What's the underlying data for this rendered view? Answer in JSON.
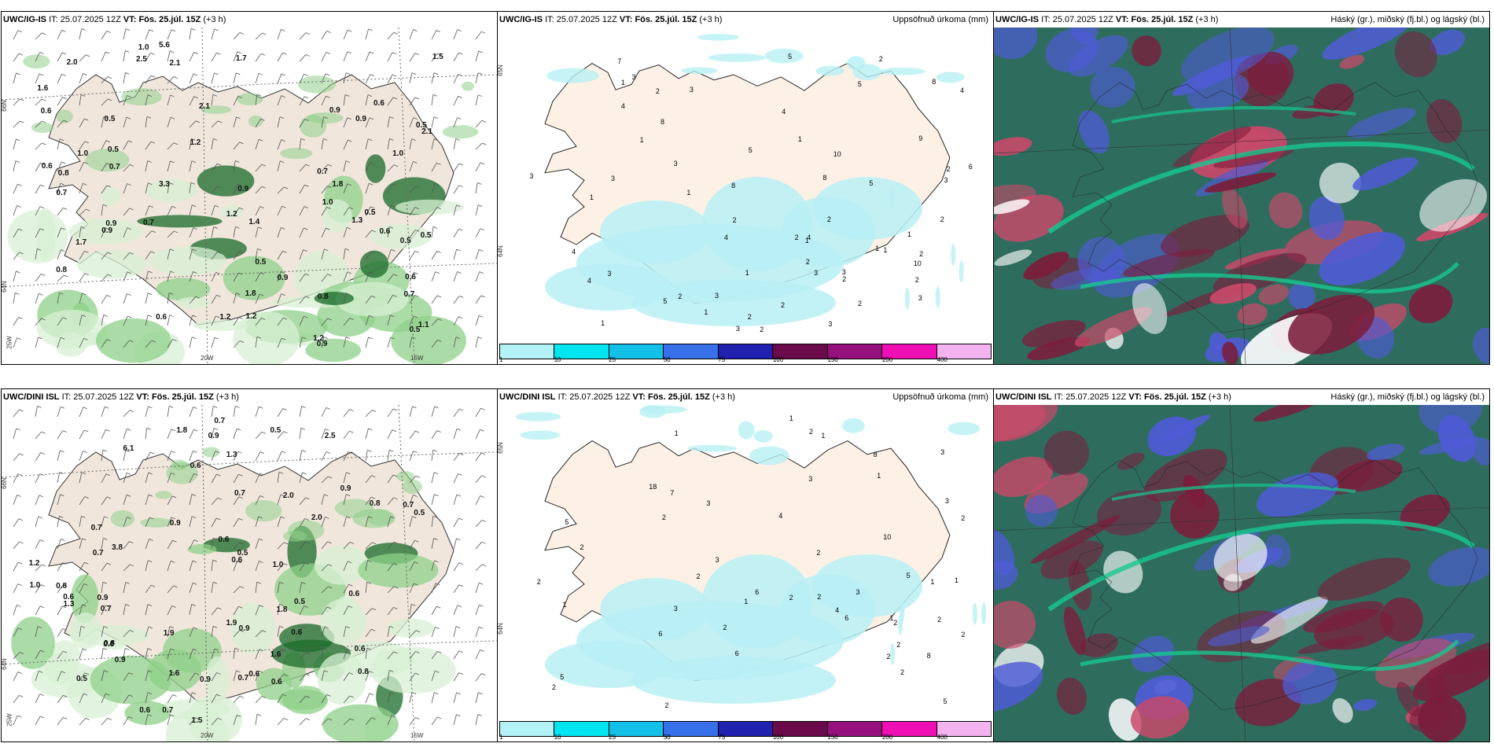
{
  "colors": {
    "land": "#f0e6dc",
    "land_light": "#fdf1e6",
    "precip_light": "#d8f0d4",
    "precip_mid": "#8fd08a",
    "precip_dark": "#1a6b2a",
    "cyan_precip": "#b8f0f4",
    "cloud_high": "#7a1e3c",
    "cloud_mid": "#2e6d5e",
    "cloud_low": "#4f5bd6",
    "cloud_green": "#17c88f"
  },
  "legend": {
    "colors": [
      "#b3f2f7",
      "#00e5f0",
      "#12c0e8",
      "#3870ea",
      "#2121b0",
      "#6a0a4a",
      "#96107e",
      "#ee10b4",
      "#f3b3f0"
    ],
    "ticks": [
      "1",
      "10",
      "25",
      "50",
      "75",
      "100",
      "150",
      "200",
      "400"
    ]
  },
  "panels": [
    {
      "model": "UWC/IG-IS",
      "it_label": "IT:",
      "it": "25.07.2025 12Z",
      "vt_label": "VT:",
      "vt": "Fös. 25.júl. 15Z",
      "lead": "(+3 h)",
      "title_right": "",
      "type": "wind_precip",
      "labels": [
        "0.6",
        "0.6",
        "0.6",
        "1.0",
        "2.1",
        "1.2",
        "2.1",
        "0.9",
        "1.4",
        "1.2",
        "1.7",
        "0.7",
        "1.8",
        "0.9",
        "1.8",
        "1.0",
        "1.7",
        "2.1",
        "0.5",
        "0.8",
        "1.2",
        "0.9",
        "0.5",
        "0.7",
        "0.5",
        "0.5",
        "0.7",
        "0.6",
        "0.5",
        "0.9",
        "0.7",
        "0.6",
        "0.5",
        "0.5",
        "1.0",
        "0.8",
        "0.9",
        "1.1",
        "1.3",
        "0.9",
        "0.8",
        "1.2",
        "2.0",
        "1.2",
        "2.5",
        "0.5",
        "1.0",
        "3.3",
        "5.6",
        "1.6",
        "0.6",
        "0.7",
        "1.5",
        "0.9"
      ],
      "lat_labels": [
        "66N",
        "64N"
      ],
      "lon_labels": [
        "25W",
        "20W",
        "15W"
      ],
      "numbers": []
    },
    {
      "model": "UWC/IG-IS",
      "it_label": "IT:",
      "it": "25.07.2025 12Z",
      "vt_label": "VT:",
      "vt": "Fös. 25.júl. 15Z",
      "lead": "(+3 h)",
      "title_right": "Uppsöfnuð úrkoma (mm)",
      "type": "accum",
      "labels": [],
      "lat_labels": [
        "65N",
        "64N"
      ],
      "lon_labels": [],
      "numbers": [
        "3",
        "3",
        "9",
        "3",
        "3",
        "4",
        "8",
        "2",
        "2",
        "1",
        "1",
        "1",
        "10",
        "5",
        "8",
        "10",
        "1",
        "2",
        "1",
        "3",
        "1",
        "2",
        "1",
        "1",
        "3",
        "1",
        "2",
        "2",
        "4",
        "3",
        "4",
        "5",
        "3",
        "5",
        "4",
        "3",
        "3",
        "2",
        "5",
        "6",
        "7",
        "2",
        "4",
        "8",
        "8",
        "4",
        "3",
        "4",
        "2",
        "2",
        "2",
        "2",
        "2",
        "1",
        "3",
        "3",
        "5",
        "1",
        "1",
        "2",
        "2",
        "2"
      ]
    },
    {
      "model": "UWC/IG-IS",
      "it_label": "IT:",
      "it": "25.07.2025 12Z",
      "vt_label": "VT:",
      "vt": "Fös. 25.júl. 15Z",
      "lead": "(+3 h)",
      "title_right": "Háský (gr.), miðský (fj.bl.) og lágský (bl.)",
      "type": "clouds",
      "labels": [],
      "lat_labels": [],
      "lon_labels": [],
      "numbers": []
    },
    {
      "model": "UWC/DINI ISL",
      "it_label": "IT:",
      "it": "25.07.2025 12Z",
      "vt_label": "VT:",
      "vt": "Fös. 25.júl. 15Z",
      "lead": "(+3 h)",
      "title_right": "",
      "type": "wind_precip",
      "labels": [
        "0.5",
        "2.5",
        "6.1",
        "0.9",
        "0.9",
        "3.8",
        "0.7",
        "0.8",
        "0.8",
        "2.0",
        "0.8",
        "0.7",
        "0.6",
        "0.6",
        "1.5",
        "1.8",
        "0.8",
        "1.2",
        "0.6",
        "0.7",
        "0.6",
        "0.9",
        "0.6",
        "0.5",
        "0.6",
        "1.6",
        "0.6",
        "0.5",
        "0.7",
        "0.5",
        "0.7",
        "0.9",
        "0.6",
        "1.9",
        "0.6",
        "1.3",
        "0.7",
        "1.0",
        "2.0",
        "0.6",
        "0.5",
        "1.3",
        "0.9",
        "0.9",
        "1.0",
        "0.7",
        "1.8",
        "0.7",
        "1.9",
        "1.6",
        "0.9",
        "0.6"
      ],
      "lat_labels": [
        "66N",
        "64N"
      ],
      "lon_labels": [
        "25W",
        "20W",
        "15W"
      ],
      "numbers": []
    },
    {
      "model": "UWC/DINI ISL",
      "it_label": "IT:",
      "it": "25.07.2025 12Z",
      "vt_label": "VT:",
      "vt": "Fös. 25.júl. 15Z",
      "lead": "(+3 h)",
      "title_right": "Uppsöfnuð úrkoma (mm)",
      "type": "accum",
      "labels": [],
      "lat_labels": [
        "65N",
        "64N"
      ],
      "lon_labels": [],
      "numbers": [
        "2",
        "2",
        "18",
        "6",
        "2",
        "6",
        "6",
        "1",
        "1",
        "2",
        "2",
        "1",
        "2",
        "2",
        "3",
        "2",
        "2",
        "3",
        "3",
        "1",
        "6",
        "10",
        "4",
        "5",
        "3",
        "8",
        "8",
        "4",
        "5",
        "5",
        "3",
        "2",
        "2",
        "5",
        "2",
        "7",
        "2",
        "1",
        "1",
        "2",
        "1",
        "1",
        "3",
        "2",
        "2",
        "1",
        "2",
        "2",
        "3"
      ]
    },
    {
      "model": "UWC/DINI ISL",
      "it_label": "IT:",
      "it": "25.07.2025 12Z",
      "vt_label": "VT:",
      "vt": "Fös. 25.júl. 15Z",
      "lead": "(+3 h)",
      "title_right": "Háský (gr.), miðský (fj.bl.) og lágský (bl.)",
      "type": "clouds",
      "labels": [],
      "lat_labels": [],
      "lon_labels": [],
      "numbers": []
    }
  ]
}
